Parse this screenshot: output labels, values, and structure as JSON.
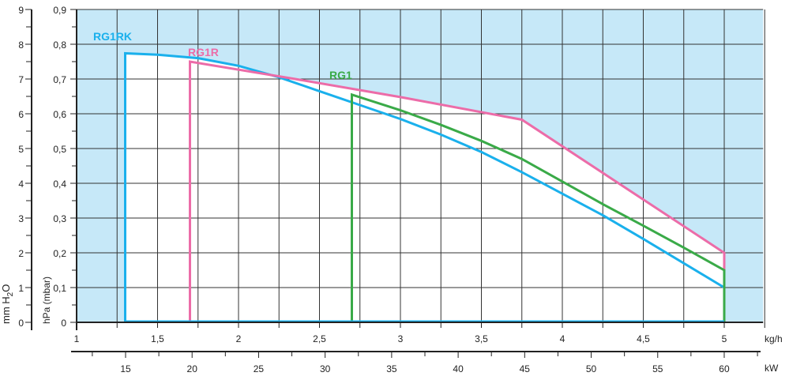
{
  "chart_data": {
    "type": "line",
    "title": "",
    "x_axis": {
      "label": "kg/h",
      "range": [
        1,
        5.24
      ],
      "ticks": [
        1,
        1.5,
        2,
        2.5,
        3,
        3.5,
        4,
        4.5,
        5
      ],
      "tick_labels": [
        "1",
        "1,5",
        "2",
        "2,5",
        "3",
        "3,5",
        "4",
        "4,5",
        "5"
      ]
    },
    "x2_axis": {
      "label": "kW",
      "ticks": [
        15,
        20,
        25,
        30,
        35,
        40,
        45,
        50,
        55,
        60
      ],
      "tick_labels": [
        "15",
        "20",
        "25",
        "30",
        "35",
        "40",
        "45",
        "50",
        "55",
        "60"
      ]
    },
    "y_axis": {
      "label": "hPa (mbar)",
      "range": [
        0,
        0.9
      ],
      "ticks": [
        0,
        0.1,
        0.2,
        0.3,
        0.4,
        0.5,
        0.6,
        0.7,
        0.8,
        0.9
      ],
      "tick_labels": [
        "0",
        "0,1",
        "0,2",
        "0,3",
        "0,4",
        "0,5",
        "0,6",
        "0,7",
        "0,8",
        "0,9"
      ]
    },
    "y2_axis": {
      "label_main": "mm H",
      "label_sub": "2",
      "label_end": "O",
      "ticks": [
        0,
        1,
        2,
        3,
        4,
        5,
        6,
        7,
        8,
        9
      ],
      "tick_labels": [
        "0",
        "1",
        "2",
        "3",
        "4",
        "5",
        "6",
        "7",
        "8",
        "9"
      ]
    },
    "grid": true,
    "colors": {
      "background": "#c6e8f8",
      "grid": "#333333"
    },
    "series": [
      {
        "name": "RG1RK",
        "color": "#1ab0ec",
        "points": [
          [
            1.3,
            0
          ],
          [
            1.3,
            0.774
          ],
          [
            1.5,
            0.77
          ],
          [
            1.75,
            0.76
          ],
          [
            2,
            0.738
          ],
          [
            2.25,
            0.705
          ],
          [
            2.5,
            0.665
          ],
          [
            2.75,
            0.625
          ],
          [
            3,
            0.585
          ],
          [
            3.25,
            0.54
          ],
          [
            3.5,
            0.49
          ],
          [
            3.75,
            0.432
          ],
          [
            4,
            0.37
          ],
          [
            4.25,
            0.308
          ],
          [
            4.5,
            0.24
          ],
          [
            4.75,
            0.17
          ],
          [
            5,
            0.1
          ],
          [
            5,
            0
          ]
        ]
      },
      {
        "name": "RG1R",
        "color": "#ec6ca8",
        "points": [
          [
            1.7,
            0
          ],
          [
            1.7,
            0.75
          ],
          [
            2.35,
            0.7
          ],
          [
            3,
            0.648
          ],
          [
            3.75,
            0.583
          ],
          [
            5,
            0.2
          ],
          [
            5,
            0
          ]
        ]
      },
      {
        "name": "RG1",
        "color": "#3aaa48",
        "points": [
          [
            2.7,
            0
          ],
          [
            2.7,
            0.655
          ],
          [
            3,
            0.61
          ],
          [
            3.25,
            0.568
          ],
          [
            3.5,
            0.522
          ],
          [
            3.75,
            0.47
          ],
          [
            4,
            0.405
          ],
          [
            4.25,
            0.34
          ],
          [
            4.5,
            0.278
          ],
          [
            4.75,
            0.215
          ],
          [
            5,
            0.15
          ],
          [
            5,
            0
          ]
        ]
      }
    ],
    "annotations": [
      {
        "text": "RG1RK",
        "series": "RG1RK"
      },
      {
        "text": "RG1R",
        "series": "RG1R"
      },
      {
        "text": "RG1",
        "series": "RG1"
      }
    ]
  }
}
